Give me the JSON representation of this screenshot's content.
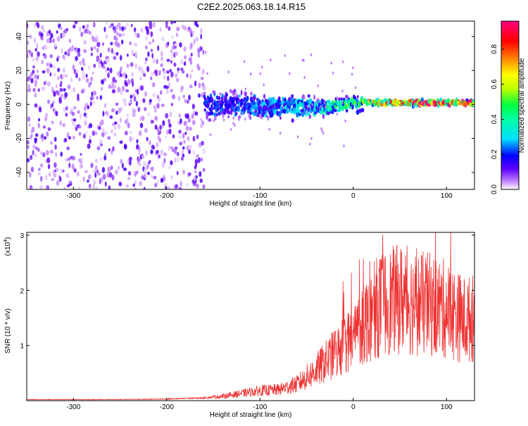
{
  "title": "C2E2.2025.063.18.14.R15",
  "chart_data": [
    {
      "type": "heatmap",
      "xlabel": "Height of straight line (km)",
      "ylabel": "Frequency (Hz)",
      "xlim": [
        -350,
        130
      ],
      "ylim": [
        -50,
        49
      ],
      "xticks": [
        -300,
        -200,
        -100,
        0,
        100
      ],
      "yticks": [
        -40,
        -20,
        0,
        20,
        40
      ],
      "colorbar": {
        "label": "Normalized spectral amplitude",
        "range": [
          0,
          0.96
        ],
        "ticks": [
          "0.0",
          "0.2",
          "0.4",
          "0.6",
          "0.8"
        ],
        "colors": [
          "#ffffff",
          "#c080ff",
          "#6000ff",
          "#0000ff",
          "#00e0ff",
          "#00ff40",
          "#c0ff00",
          "#ffff00",
          "#ff8000",
          "#ff0000",
          "#ff0080"
        ]
      },
      "features": [
        {
          "x_range": [
            -350,
            -160
          ],
          "freq_range": [
            -50,
            49
          ],
          "amplitude": 0.12
        },
        {
          "x_range": [
            -160,
            0
          ],
          "freq_range": [
            -12,
            12
          ],
          "amplitude": 0.25
        },
        {
          "x_range": [
            0,
            130
          ],
          "freq_range": [
            -3,
            5
          ],
          "amplitude": 0.85
        }
      ]
    },
    {
      "type": "line",
      "xlabel": "Height of straight line (km)",
      "ylabel": "SNR (10 * v/v)",
      "y_scale_label": "(x10",
      "y_scale_exponent": "4",
      "xlim": [
        -350,
        130
      ],
      "ylim": [
        0,
        3.05
      ],
      "xticks": [
        -300,
        -200,
        -100,
        0,
        100
      ],
      "yticks": [
        1,
        2,
        3
      ],
      "series": [
        {
          "color": "#ee3333",
          "x": [
            -350,
            -250,
            -200,
            -160,
            -140,
            -120,
            -100,
            -80,
            -60,
            -40,
            -20,
            -10,
            0,
            10,
            20,
            30,
            40,
            50,
            60,
            70,
            80,
            90,
            100,
            110,
            120,
            130
          ],
          "y": [
            0.02,
            0.02,
            0.03,
            0.05,
            0.08,
            0.13,
            0.18,
            0.2,
            0.3,
            0.55,
            0.85,
            1.0,
            1.15,
            1.4,
            1.6,
            1.75,
            1.8,
            1.85,
            1.8,
            1.75,
            1.75,
            1.7,
            1.65,
            1.55,
            1.45,
            1.5
          ]
        }
      ]
    }
  ]
}
